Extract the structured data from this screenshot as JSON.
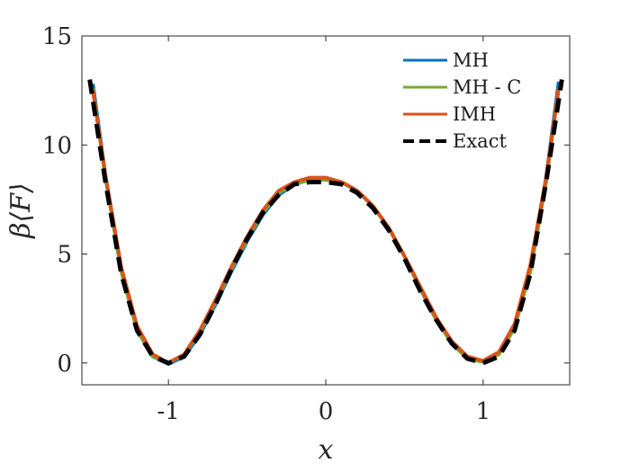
{
  "chart_data": {
    "type": "line",
    "title": "",
    "xlabel": "x",
    "ylabel": "β⟨F⟩",
    "xlim": [
      -1.55,
      1.55
    ],
    "ylim": [
      -1,
      15
    ],
    "xticks": [
      -1,
      0,
      1
    ],
    "xtick_labels": [
      "-1",
      "0",
      "1"
    ],
    "yticks": [
      0,
      5,
      10,
      15
    ],
    "ytick_labels": [
      "0",
      "5",
      "10",
      "15"
    ],
    "grid": false,
    "legend_position": "top-right",
    "series": [
      {
        "name": "MH",
        "color": "#0072BD",
        "style": "solid",
        "x": [
          -1.48,
          -1.4,
          -1.3,
          -1.2,
          -1.1,
          -1.0,
          -0.9,
          -0.8,
          -0.7,
          -0.6,
          -0.5,
          -0.4,
          -0.3,
          -0.2,
          -0.1,
          0.0,
          0.1,
          0.2,
          0.3,
          0.4,
          0.5,
          0.6,
          0.7,
          0.8,
          0.9,
          1.0,
          1.1,
          1.2,
          1.3,
          1.4,
          1.48
        ],
        "y": [
          12.8,
          8.6,
          4.3,
          1.6,
          0.3,
          -0.05,
          0.3,
          1.3,
          2.7,
          4.2,
          5.6,
          6.8,
          7.7,
          8.2,
          8.4,
          8.4,
          8.3,
          7.9,
          7.2,
          6.2,
          4.9,
          3.5,
          2.1,
          0.9,
          0.2,
          0.05,
          0.4,
          1.7,
          4.4,
          8.5,
          12.9
        ]
      },
      {
        "name": "MH - C",
        "color": "#77AC30",
        "style": "solid",
        "x": [
          -1.48,
          -1.4,
          -1.3,
          -1.2,
          -1.1,
          -1.0,
          -0.9,
          -0.8,
          -0.7,
          -0.6,
          -0.5,
          -0.4,
          -0.3,
          -0.2,
          -0.1,
          0.0,
          0.1,
          0.2,
          0.3,
          0.4,
          0.5,
          0.6,
          0.7,
          0.8,
          0.9,
          1.0,
          1.1,
          1.2,
          1.3,
          1.4,
          1.48
        ],
        "y": [
          12.6,
          8.5,
          4.2,
          1.5,
          0.3,
          0.0,
          0.4,
          1.4,
          2.8,
          4.3,
          5.7,
          6.9,
          7.8,
          8.2,
          8.4,
          8.4,
          8.3,
          7.9,
          7.2,
          6.2,
          4.9,
          3.4,
          2.0,
          0.9,
          0.2,
          0.05,
          0.4,
          1.6,
          4.2,
          8.3,
          12.6
        ]
      },
      {
        "name": "IMH",
        "color": "#D95319",
        "style": "solid",
        "x": [
          -1.48,
          -1.4,
          -1.3,
          -1.2,
          -1.1,
          -1.0,
          -0.9,
          -0.8,
          -0.7,
          -0.6,
          -0.5,
          -0.4,
          -0.3,
          -0.2,
          -0.1,
          0.0,
          0.1,
          0.2,
          0.3,
          0.4,
          0.5,
          0.6,
          0.7,
          0.8,
          0.9,
          1.0,
          1.1,
          1.2,
          1.3,
          1.4,
          1.48
        ],
        "y": [
          12.5,
          8.6,
          4.4,
          1.7,
          0.4,
          0.0,
          0.4,
          1.5,
          2.9,
          4.4,
          5.8,
          7.0,
          7.9,
          8.3,
          8.5,
          8.5,
          8.3,
          7.9,
          7.2,
          6.2,
          4.9,
          3.5,
          2.1,
          1.0,
          0.3,
          0.1,
          0.5,
          1.8,
          4.5,
          8.5,
          12.6
        ]
      },
      {
        "name": "Exact",
        "color": "#000000",
        "style": "dashed",
        "x": [
          -1.5,
          -1.4,
          -1.3,
          -1.2,
          -1.1,
          -1.0,
          -0.9,
          -0.8,
          -0.7,
          -0.6,
          -0.5,
          -0.4,
          -0.3,
          -0.2,
          -0.1,
          0.0,
          0.1,
          0.2,
          0.3,
          0.4,
          0.5,
          0.6,
          0.7,
          0.8,
          0.9,
          1.0,
          1.1,
          1.2,
          1.3,
          1.4,
          1.5
        ],
        "y": [
          13.0,
          8.3,
          4.1,
          1.5,
          0.3,
          0.0,
          0.3,
          1.3,
          2.7,
          4.3,
          5.7,
          6.9,
          7.7,
          8.2,
          8.3,
          8.3,
          8.2,
          7.8,
          7.1,
          6.1,
          4.8,
          3.3,
          2.0,
          0.9,
          0.2,
          0.0,
          0.3,
          1.5,
          4.1,
          8.3,
          13.0
        ]
      }
    ]
  }
}
